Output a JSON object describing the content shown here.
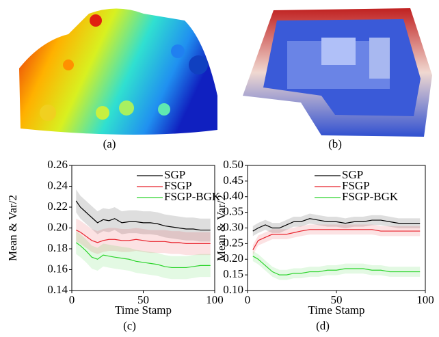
{
  "panels": {
    "a": "(a)",
    "b": "(b)"
  },
  "chart_data": [
    {
      "type": "line",
      "caption": "(c)",
      "xlabel": "Time Stamp",
      "ylabel": "Mean & Var/2",
      "x": [
        3,
        6,
        10,
        14,
        18,
        22,
        26,
        30,
        35,
        40,
        45,
        50,
        55,
        60,
        65,
        70,
        75,
        80,
        85,
        90,
        97
      ],
      "xlim": [
        0,
        100
      ],
      "xticks": [
        0,
        50,
        100
      ],
      "ylim": [
        0.14,
        0.26
      ],
      "yticks": [
        0.14,
        0.16,
        0.18,
        {
          "value": 0.2,
          "label": "0.20"
        },
        0.22,
        0.24,
        0.26
      ],
      "series": [
        {
          "name": "SGP",
          "color": "#000000",
          "band": 0.011,
          "values": [
            0.226,
            0.22,
            0.215,
            0.21,
            0.205,
            0.208,
            0.207,
            0.209,
            0.205,
            0.206,
            0.206,
            0.205,
            0.205,
            0.204,
            0.202,
            0.201,
            0.2,
            0.199,
            0.199,
            0.198,
            0.198
          ]
        },
        {
          "name": "FSGP",
          "color": "#e8202a",
          "band": 0.011,
          "values": [
            0.198,
            0.196,
            0.192,
            0.188,
            0.186,
            0.188,
            0.189,
            0.189,
            0.188,
            0.188,
            0.189,
            0.188,
            0.187,
            0.187,
            0.187,
            0.186,
            0.186,
            0.185,
            0.185,
            0.185,
            0.185
          ]
        },
        {
          "name": "FSGP-BGK",
          "color": "#2ad42a",
          "band": 0.011,
          "values": [
            0.186,
            0.183,
            0.178,
            0.172,
            0.17,
            0.174,
            0.173,
            0.172,
            0.171,
            0.17,
            0.168,
            0.167,
            0.166,
            0.165,
            0.163,
            0.162,
            0.162,
            0.162,
            0.163,
            0.164,
            0.164
          ]
        }
      ]
    },
    {
      "type": "line",
      "caption": "(d)",
      "xlabel": "Time Stamp",
      "ylabel": "Mean & Var/2",
      "x": [
        3,
        6,
        10,
        14,
        18,
        22,
        26,
        30,
        35,
        40,
        45,
        50,
        55,
        60,
        65,
        70,
        75,
        80,
        85,
        90,
        97
      ],
      "xlim": [
        0,
        100
      ],
      "xticks": [
        0,
        50,
        100
      ],
      "ylim": [
        0.1,
        0.5
      ],
      "yticks": [
        {
          "value": 0.1,
          "label": "0.10"
        },
        0.15,
        {
          "value": 0.2,
          "label": "0.20"
        },
        0.25,
        {
          "value": 0.3,
          "label": "0.30"
        },
        0.35,
        {
          "value": 0.4,
          "label": "0.40"
        },
        0.45,
        {
          "value": 0.5,
          "label": "0.50"
        }
      ],
      "series": [
        {
          "name": "SGP",
          "color": "#000000",
          "band": 0.016,
          "values": [
            0.29,
            0.3,
            0.31,
            0.3,
            0.3,
            0.31,
            0.32,
            0.32,
            0.33,
            0.325,
            0.32,
            0.32,
            0.315,
            0.32,
            0.32,
            0.325,
            0.325,
            0.32,
            0.315,
            0.315,
            0.315
          ]
        },
        {
          "name": "FSGP",
          "color": "#e8202a",
          "band": 0.016,
          "values": [
            0.23,
            0.26,
            0.27,
            0.28,
            0.28,
            0.28,
            0.285,
            0.29,
            0.295,
            0.295,
            0.295,
            0.295,
            0.295,
            0.295,
            0.295,
            0.295,
            0.29,
            0.29,
            0.29,
            0.29,
            0.29
          ]
        },
        {
          "name": "FSGP-BGK",
          "color": "#2ad42a",
          "band": 0.016,
          "values": [
            0.21,
            0.2,
            0.18,
            0.16,
            0.15,
            0.15,
            0.155,
            0.155,
            0.16,
            0.16,
            0.165,
            0.165,
            0.17,
            0.17,
            0.17,
            0.165,
            0.165,
            0.16,
            0.16,
            0.16,
            0.16
          ]
        }
      ]
    }
  ]
}
